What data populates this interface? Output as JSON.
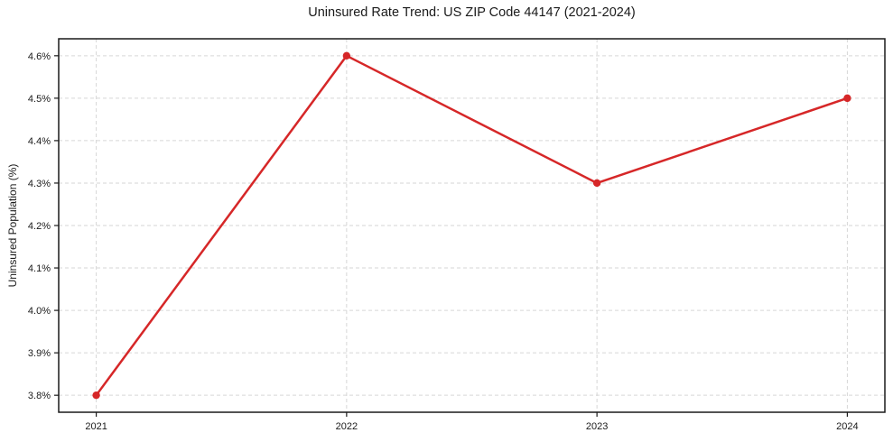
{
  "figure": {
    "title": "Uninsured Rate Trend: US ZIP Code 44147 (2021-2024)"
  },
  "chart_data": {
    "type": "line",
    "title": "Uninsured Rate Trend: US ZIP Code 44147 (2021-2024)",
    "xlabel": "",
    "ylabel": "Uninsured Population (%)",
    "x": [
      2021,
      2022,
      2023,
      2024
    ],
    "xtick_labels": [
      "2021",
      "2022",
      "2023",
      "2024"
    ],
    "series": [
      {
        "name": "Uninsured Rate",
        "values": [
          3.8,
          4.6,
          4.3,
          4.5
        ]
      }
    ],
    "yticks": [
      3.8,
      3.9,
      4.0,
      4.1,
      4.2,
      4.3,
      4.4,
      4.5,
      4.6
    ],
    "ytick_labels": [
      "3.8%",
      "3.9%",
      "4.0%",
      "4.1%",
      "4.2%",
      "4.3%",
      "4.4%",
      "4.5%",
      "4.6%"
    ],
    "xlim": [
      2020.85,
      2024.15
    ],
    "ylim": [
      3.76,
      4.64
    ],
    "grid": true,
    "grid_style": "dashed",
    "legend": false,
    "colors": {
      "line": "#d62728",
      "marker": "#d62728",
      "grid": "#d6d6d6",
      "axis_border": "#1a1a1a",
      "text": "#1a1a1a",
      "background": "#ffffff"
    }
  }
}
